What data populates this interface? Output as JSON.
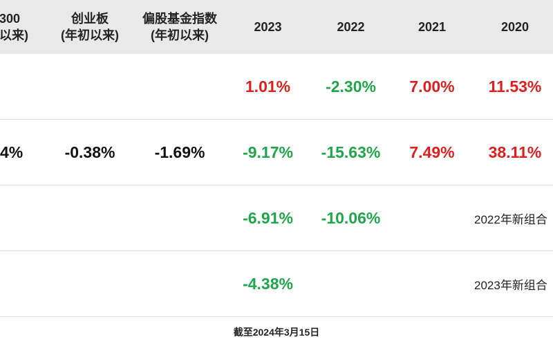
{
  "header": {
    "col1": [
      "300",
      "以来)"
    ],
    "col2": [
      "创业板",
      "(年初以来)"
    ],
    "col3": [
      "偏股基金指数",
      "(年初以来)"
    ],
    "col4": "2023",
    "col5": "2022",
    "col6": "2021",
    "col7": "2020"
  },
  "rows": [
    {
      "c1": "",
      "c2": "",
      "c3": "",
      "c4": "1.01%",
      "c5": "-2.30%",
      "c6": "7.00%",
      "c7": "11.53%"
    },
    {
      "c1": "4%",
      "c2": "-0.38%",
      "c3": "-1.69%",
      "c4": "-9.17%",
      "c5": "-15.63%",
      "c6": "7.49%",
      "c7": "38.11%"
    },
    {
      "c1": "",
      "c2": "",
      "c3": "",
      "c4": "-6.91%",
      "c5": "-10.06%",
      "c6": "",
      "c7": "2022年新组合"
    },
    {
      "c1": "",
      "c2": "",
      "c3": "",
      "c4": "-4.38%",
      "c5": "",
      "c6": "",
      "c7": "2023年新组合"
    }
  ],
  "colors": {
    "positive": "#e01e1e",
    "negative": "#1fa64a",
    "header_bg": "#e9e9e9"
  },
  "footer": "截至2024年3月15日"
}
